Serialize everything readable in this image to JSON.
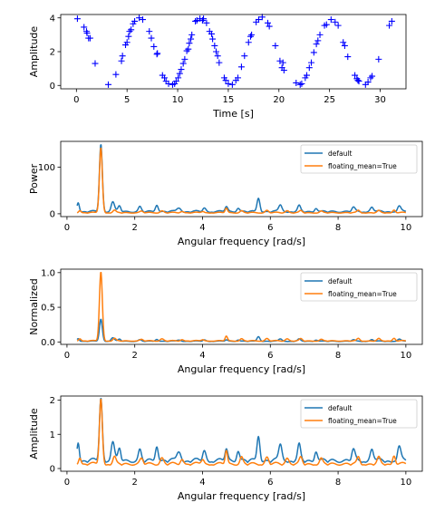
{
  "figure": {
    "background": "#ffffff"
  },
  "chart_data": [
    {
      "type": "scatter",
      "marker": "plus",
      "color": "#0000ff",
      "xlabel": "Time [s]",
      "ylabel": "Amplitude",
      "xlim": [
        -1.55,
        32.55
      ],
      "ylim": [
        -0.2,
        4.2
      ],
      "xticks": [
        0,
        5,
        10,
        15,
        20,
        25,
        30
      ],
      "yticks": [
        0,
        2,
        4
      ],
      "points": [
        [
          0.1,
          3.95
        ],
        [
          0.75,
          3.45
        ],
        [
          1.0,
          3.2
        ],
        [
          1.05,
          3.1
        ],
        [
          1.2,
          2.8
        ],
        [
          1.35,
          2.8
        ],
        [
          1.85,
          1.3
        ],
        [
          3.15,
          0.05
        ],
        [
          3.9,
          0.65
        ],
        [
          4.45,
          1.45
        ],
        [
          4.55,
          1.75
        ],
        [
          4.85,
          2.4
        ],
        [
          5.0,
          2.55
        ],
        [
          5.15,
          2.9
        ],
        [
          5.25,
          3.2
        ],
        [
          5.4,
          3.3
        ],
        [
          5.6,
          3.65
        ],
        [
          5.75,
          3.8
        ],
        [
          6.2,
          4.0
        ],
        [
          6.55,
          3.9
        ],
        [
          7.2,
          3.2
        ],
        [
          7.4,
          2.8
        ],
        [
          7.65,
          2.3
        ],
        [
          7.95,
          1.85
        ],
        [
          8.0,
          1.9
        ],
        [
          8.5,
          0.6
        ],
        [
          8.7,
          0.45
        ],
        [
          8.85,
          0.25
        ],
        [
          9.1,
          0.1
        ],
        [
          9.5,
          0.05
        ],
        [
          9.7,
          0.1
        ],
        [
          9.85,
          0.25
        ],
        [
          10.05,
          0.45
        ],
        [
          10.2,
          0.7
        ],
        [
          10.35,
          0.95
        ],
        [
          10.55,
          1.3
        ],
        [
          10.7,
          1.55
        ],
        [
          10.9,
          2.05
        ],
        [
          11.05,
          2.15
        ],
        [
          11.15,
          2.5
        ],
        [
          11.3,
          2.75
        ],
        [
          11.4,
          3.0
        ],
        [
          11.75,
          3.8
        ],
        [
          11.9,
          3.85
        ],
        [
          12.2,
          3.95
        ],
        [
          12.45,
          3.85
        ],
        [
          12.55,
          3.95
        ],
        [
          12.85,
          3.7
        ],
        [
          13.15,
          3.2
        ],
        [
          13.35,
          3.05
        ],
        [
          13.45,
          2.75
        ],
        [
          13.65,
          2.35
        ],
        [
          13.8,
          2.0
        ],
        [
          13.95,
          1.75
        ],
        [
          14.1,
          1.35
        ],
        [
          14.6,
          0.45
        ],
        [
          14.75,
          0.3
        ],
        [
          15.0,
          0.1
        ],
        [
          15.4,
          0.05
        ],
        [
          15.75,
          0.3
        ],
        [
          15.95,
          0.45
        ],
        [
          16.3,
          1.1
        ],
        [
          16.6,
          1.75
        ],
        [
          17.0,
          2.55
        ],
        [
          17.2,
          2.9
        ],
        [
          17.3,
          3.0
        ],
        [
          17.75,
          3.75
        ],
        [
          18.0,
          3.9
        ],
        [
          18.35,
          4.05
        ],
        [
          18.9,
          3.7
        ],
        [
          19.05,
          3.5
        ],
        [
          19.65,
          2.35
        ],
        [
          20.1,
          1.45
        ],
        [
          20.3,
          1.05
        ],
        [
          20.4,
          1.35
        ],
        [
          20.5,
          0.9
        ],
        [
          21.7,
          0.15
        ],
        [
          22.1,
          0.05
        ],
        [
          22.25,
          0.1
        ],
        [
          22.6,
          0.45
        ],
        [
          22.75,
          0.6
        ],
        [
          23.0,
          1.05
        ],
        [
          23.2,
          1.35
        ],
        [
          23.45,
          1.95
        ],
        [
          23.7,
          2.45
        ],
        [
          23.85,
          2.65
        ],
        [
          24.05,
          3.0
        ],
        [
          24.5,
          3.55
        ],
        [
          24.7,
          3.6
        ],
        [
          25.15,
          3.9
        ],
        [
          25.55,
          3.75
        ],
        [
          25.85,
          3.55
        ],
        [
          26.35,
          2.55
        ],
        [
          26.5,
          2.35
        ],
        [
          26.8,
          1.7
        ],
        [
          27.5,
          0.6
        ],
        [
          27.7,
          0.4
        ],
        [
          27.8,
          0.3
        ],
        [
          27.9,
          0.25
        ],
        [
          28.55,
          0.05
        ],
        [
          28.8,
          0.2
        ],
        [
          29.05,
          0.45
        ],
        [
          29.2,
          0.55
        ],
        [
          29.85,
          1.55
        ],
        [
          30.9,
          3.55
        ],
        [
          31.15,
          3.8
        ]
      ]
    },
    {
      "type": "line",
      "xlabel": "Angular frequency [rad/s]",
      "ylabel": "Power",
      "xlim": [
        -0.185,
        10.485
      ],
      "ylim": [
        -6,
        155
      ],
      "xticks": [
        0,
        2,
        4,
        6,
        8,
        10
      ],
      "yticks": [
        0,
        100
      ],
      "legend": {
        "position": "upper right",
        "entries": [
          "default",
          "floating_mean=True"
        ]
      },
      "series": [
        {
          "name": "default",
          "color": "#1f77b4",
          "baseline": 3,
          "ripple": 4,
          "peaks": [
            [
              0.33,
              20,
              0.05
            ],
            [
              1.0,
              145,
              0.06
            ],
            [
              1.35,
              21,
              0.07
            ],
            [
              1.55,
              12,
              0.06
            ],
            [
              2.15,
              10,
              0.06
            ],
            [
              2.65,
              15,
              0.06
            ],
            [
              3.3,
              9,
              0.08
            ],
            [
              4.05,
              8,
              0.07
            ],
            [
              4.7,
              11,
              0.06
            ],
            [
              5.05,
              8,
              0.06
            ],
            [
              5.65,
              30,
              0.06
            ],
            [
              6.3,
              15,
              0.07
            ],
            [
              6.85,
              12,
              0.06
            ],
            [
              7.35,
              8,
              0.06
            ],
            [
              8.45,
              9,
              0.07
            ],
            [
              9.0,
              10,
              0.07
            ],
            [
              9.8,
              12,
              0.07
            ]
          ]
        },
        {
          "name": "floating_mean=True",
          "color": "#ff7f0e",
          "baseline": 1.5,
          "ripple": 2,
          "peaks": [
            [
              0.38,
              5,
              0.05
            ],
            [
              1.0,
              140,
              0.06
            ],
            [
              1.4,
              5,
              0.06
            ],
            [
              2.2,
              3,
              0.07
            ],
            [
              2.8,
              4,
              0.07
            ],
            [
              3.4,
              3,
              0.07
            ],
            [
              4.0,
              3,
              0.06
            ],
            [
              4.7,
              10,
              0.05
            ],
            [
              5.15,
              4,
              0.06
            ],
            [
              5.9,
              5,
              0.07
            ],
            [
              6.5,
              5,
              0.07
            ],
            [
              6.9,
              4,
              0.06
            ],
            [
              7.5,
              3,
              0.06
            ],
            [
              8.6,
              5,
              0.06
            ],
            [
              9.2,
              4,
              0.06
            ],
            [
              9.65,
              6,
              0.06
            ]
          ]
        }
      ]
    },
    {
      "type": "line",
      "xlabel": "Angular frequency [rad/s]",
      "ylabel": "Normalized",
      "xlim": [
        -0.185,
        10.485
      ],
      "ylim": [
        -0.035,
        1.05
      ],
      "xticks": [
        0,
        2,
        4,
        6,
        8,
        10
      ],
      "yticks": [
        0.0,
        0.5,
        1.0
      ],
      "yticklabels": [
        "0.0",
        "0.5",
        "1.0"
      ],
      "legend": {
        "position": "upper right",
        "entries": [
          "default",
          "floating_mean=True"
        ]
      },
      "series": [
        {
          "name": "default",
          "color": "#1f77b4",
          "baseline": 0.006,
          "ripple": 0.01,
          "peaks": [
            [
              0.33,
              0.04,
              0.05
            ],
            [
              1.0,
              0.32,
              0.06
            ],
            [
              1.35,
              0.05,
              0.07
            ],
            [
              1.55,
              0.03,
              0.06
            ],
            [
              2.15,
              0.02,
              0.06
            ],
            [
              2.65,
              0.03,
              0.06
            ],
            [
              3.3,
              0.02,
              0.08
            ],
            [
              4.05,
              0.02,
              0.07
            ],
            [
              4.7,
              0.02,
              0.06
            ],
            [
              5.05,
              0.02,
              0.06
            ],
            [
              5.65,
              0.07,
              0.06
            ],
            [
              6.3,
              0.035,
              0.07
            ],
            [
              6.85,
              0.03,
              0.06
            ],
            [
              7.35,
              0.02,
              0.06
            ],
            [
              8.45,
              0.02,
              0.07
            ],
            [
              9.0,
              0.025,
              0.07
            ],
            [
              9.8,
              0.03,
              0.07
            ]
          ]
        },
        {
          "name": "floating_mean=True",
          "color": "#ff7f0e",
          "baseline": 0.01,
          "ripple": 0.012,
          "peaks": [
            [
              0.38,
              0.035,
              0.05
            ],
            [
              1.0,
              1.0,
              0.06
            ],
            [
              1.4,
              0.035,
              0.06
            ],
            [
              2.2,
              0.02,
              0.07
            ],
            [
              2.8,
              0.03,
              0.07
            ],
            [
              3.4,
              0.02,
              0.07
            ],
            [
              4.0,
              0.02,
              0.06
            ],
            [
              4.7,
              0.07,
              0.05
            ],
            [
              5.15,
              0.03,
              0.06
            ],
            [
              5.9,
              0.035,
              0.07
            ],
            [
              6.5,
              0.035,
              0.07
            ],
            [
              6.9,
              0.03,
              0.06
            ],
            [
              7.5,
              0.02,
              0.06
            ],
            [
              8.6,
              0.035,
              0.06
            ],
            [
              9.2,
              0.03,
              0.06
            ],
            [
              9.65,
              0.04,
              0.06
            ]
          ]
        }
      ]
    },
    {
      "type": "line",
      "xlabel": "Angular frequency [rad/s]",
      "ylabel": "Amplitude",
      "xlim": [
        -0.185,
        10.485
      ],
      "ylim": [
        -0.08,
        2.12
      ],
      "xticks": [
        0,
        2,
        4,
        6,
        8,
        10
      ],
      "yticks": [
        0,
        1,
        2
      ],
      "legend": {
        "position": "upper right",
        "entries": [
          "default",
          "floating_mean=True"
        ]
      },
      "series": [
        {
          "name": "default",
          "color": "#1f77b4",
          "baseline": 0.18,
          "ripple": 0.12,
          "peaks": [
            [
              0.33,
              0.55,
              0.05
            ],
            [
              1.0,
              1.85,
              0.06
            ],
            [
              1.35,
              0.55,
              0.07
            ],
            [
              1.55,
              0.35,
              0.06
            ],
            [
              2.15,
              0.3,
              0.06
            ],
            [
              2.65,
              0.45,
              0.06
            ],
            [
              3.3,
              0.3,
              0.08
            ],
            [
              4.05,
              0.3,
              0.07
            ],
            [
              4.7,
              0.35,
              0.06
            ],
            [
              5.05,
              0.3,
              0.06
            ],
            [
              5.65,
              0.75,
              0.06
            ],
            [
              6.3,
              0.5,
              0.07
            ],
            [
              6.85,
              0.45,
              0.06
            ],
            [
              7.35,
              0.3,
              0.06
            ],
            [
              8.45,
              0.32,
              0.07
            ],
            [
              9.0,
              0.35,
              0.07
            ],
            [
              9.8,
              0.42,
              0.07
            ]
          ]
        },
        {
          "name": "floating_mean=True",
          "color": "#ff7f0e",
          "baseline": 0.1,
          "ripple": 0.08,
          "peaks": [
            [
              0.38,
              0.2,
              0.05
            ],
            [
              1.0,
              1.92,
              0.06
            ],
            [
              1.4,
              0.2,
              0.06
            ],
            [
              2.2,
              0.15,
              0.07
            ],
            [
              2.8,
              0.18,
              0.07
            ],
            [
              3.4,
              0.15,
              0.07
            ],
            [
              4.0,
              0.15,
              0.06
            ],
            [
              4.7,
              0.4,
              0.05
            ],
            [
              5.15,
              0.2,
              0.06
            ],
            [
              5.9,
              0.2,
              0.07
            ],
            [
              6.5,
              0.2,
              0.07
            ],
            [
              6.9,
              0.18,
              0.06
            ],
            [
              7.5,
              0.15,
              0.06
            ],
            [
              8.6,
              0.2,
              0.06
            ],
            [
              9.2,
              0.18,
              0.06
            ],
            [
              9.65,
              0.25,
              0.06
            ]
          ]
        }
      ]
    }
  ]
}
